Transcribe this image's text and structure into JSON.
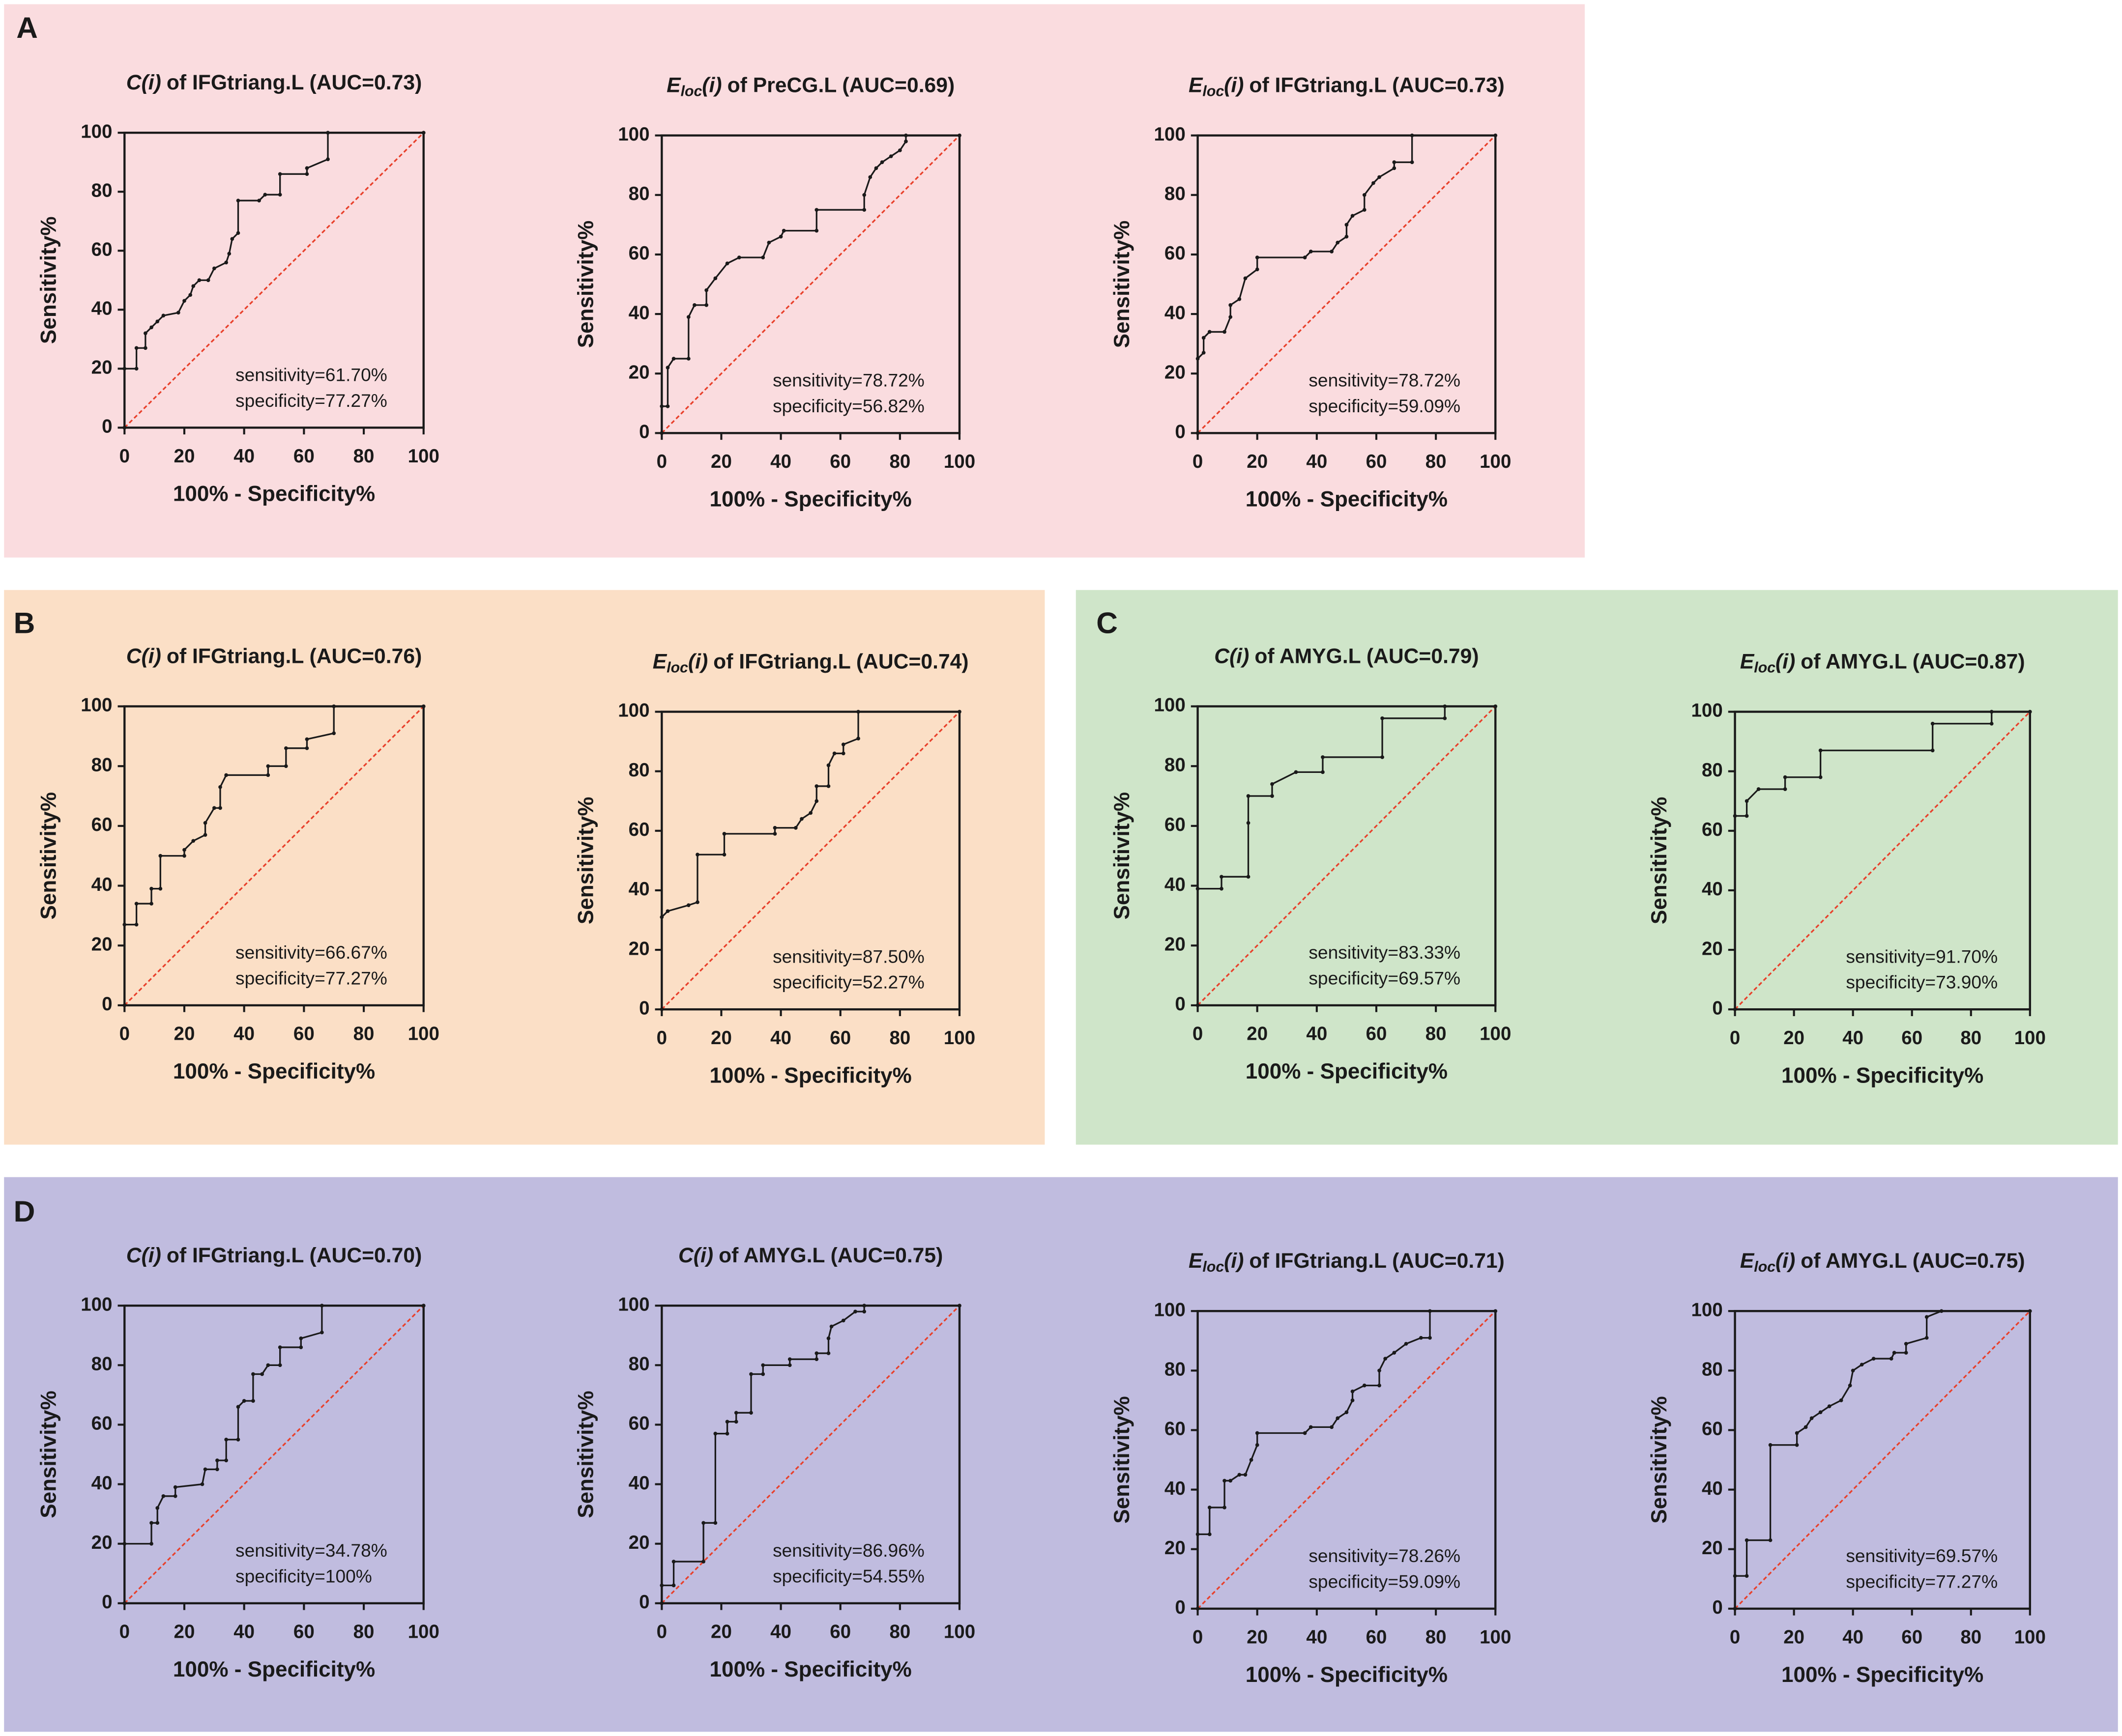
{
  "panels": [
    {
      "label": "A",
      "color": "#fadcdf"
    },
    {
      "label": "B",
      "color": "#fbdfc6"
    },
    {
      "label": "C",
      "color": "#cfe5c9"
    },
    {
      "label": "D",
      "color": "#c0bcdf"
    }
  ],
  "chart_data": [
    {
      "type": "line",
      "title": {
        "main": "C",
        "arg": "(i)",
        "rest": "of IFGtriang.L (AUC=0.73)"
      },
      "x": [
        0,
        0,
        4,
        4,
        7,
        7,
        9,
        11,
        13,
        18,
        20,
        22,
        23,
        25,
        28,
        30,
        34,
        35,
        36,
        38,
        38,
        45,
        47,
        52,
        52,
        61,
        61,
        68,
        68,
        100
      ],
      "values": [
        0,
        20,
        20,
        27,
        27,
        32,
        34,
        36,
        38,
        39,
        43,
        45,
        48,
        50,
        50,
        54,
        56,
        59,
        64,
        66,
        77,
        77,
        79,
        79,
        86,
        86,
        88,
        91,
        100,
        100
      ],
      "color": "#1a1a1a",
      "reference_color": "#e8412c",
      "xlim": [
        0,
        100
      ],
      "ylim": [
        0,
        100
      ],
      "xticks": [
        0,
        20,
        40,
        60,
        80,
        100
      ],
      "yticks": [
        0,
        20,
        40,
        60,
        80,
        100
      ],
      "x_label": "100% - Specificity%",
      "y_label": "Sensitivity%",
      "annotations": [
        "sensitivity=61.70%",
        "specificity=77.27%"
      ]
    },
    {
      "type": "line",
      "title": {
        "main": "E",
        "sub": "loc",
        "arg": "(i)",
        "rest": "of PreCG.L (AUC=0.69)"
      },
      "x": [
        0,
        0,
        2,
        2,
        4,
        9,
        9,
        11,
        15,
        15,
        18,
        22,
        26,
        34,
        36,
        40,
        41,
        52,
        52,
        68,
        68,
        70,
        72,
        74,
        77,
        80,
        82,
        82,
        100
      ],
      "values": [
        0,
        9,
        9,
        22,
        25,
        25,
        39,
        43,
        43,
        48,
        52,
        57,
        59,
        59,
        64,
        66,
        68,
        68,
        75,
        75,
        80,
        86,
        89,
        91,
        93,
        95,
        98,
        100,
        100
      ],
      "color": "#1a1a1a",
      "reference_color": "#e8412c",
      "xlim": [
        0,
        100
      ],
      "ylim": [
        0,
        100
      ],
      "xticks": [
        0,
        20,
        40,
        60,
        80,
        100
      ],
      "yticks": [
        0,
        20,
        40,
        60,
        80,
        100
      ],
      "x_label": "100% - Specificity%",
      "y_label": "Sensitivity%",
      "annotations": [
        "sensitivity=78.72%",
        "specificity=56.82%"
      ]
    },
    {
      "type": "line",
      "title": {
        "main": "E",
        "sub": "loc",
        "arg": "(i)",
        "rest": "of IFGtriang.L (AUC=0.73)"
      },
      "x": [
        0,
        0,
        2,
        2,
        4,
        9,
        11,
        11,
        14,
        16,
        20,
        20,
        36,
        38,
        45,
        47,
        50,
        50,
        52,
        56,
        56,
        59,
        61,
        66,
        66,
        72,
        72,
        100
      ],
      "values": [
        0,
        25,
        27,
        32,
        34,
        34,
        39,
        43,
        45,
        52,
        55,
        59,
        59,
        61,
        61,
        64,
        66,
        70,
        73,
        75,
        80,
        84,
        86,
        89,
        91,
        91,
        100,
        100
      ],
      "color": "#1a1a1a",
      "reference_color": "#e8412c",
      "xlim": [
        0,
        100
      ],
      "ylim": [
        0,
        100
      ],
      "xticks": [
        0,
        20,
        40,
        60,
        80,
        100
      ],
      "yticks": [
        0,
        20,
        40,
        60,
        80,
        100
      ],
      "x_label": "100% - Specificity%",
      "y_label": "Sensitivity%",
      "annotations": [
        "sensitivity=78.72%",
        "specificity=59.09%"
      ]
    },
    {
      "type": "line",
      "title": {
        "main": "C",
        "arg": "(i)",
        "rest": "of IFGtriang.L (AUC=0.76)"
      },
      "x": [
        0,
        0,
        4,
        4,
        9,
        9,
        12,
        12,
        20,
        20,
        23,
        27,
        27,
        30,
        32,
        32,
        34,
        48,
        48,
        54,
        54,
        61,
        61,
        70,
        70,
        100
      ],
      "values": [
        0,
        27,
        27,
        34,
        34,
        39,
        39,
        50,
        50,
        52,
        55,
        57,
        61,
        66,
        66,
        73,
        77,
        77,
        80,
        80,
        86,
        86,
        89,
        91,
        100,
        100
      ],
      "color": "#1a1a1a",
      "reference_color": "#e8412c",
      "xlim": [
        0,
        100
      ],
      "ylim": [
        0,
        100
      ],
      "xticks": [
        0,
        20,
        40,
        60,
        80,
        100
      ],
      "yticks": [
        0,
        20,
        40,
        60,
        80,
        100
      ],
      "x_label": "100% - Specificity%",
      "y_label": "Sensitivity%",
      "annotations": [
        "sensitivity=66.67%",
        "specificity=77.27%"
      ]
    },
    {
      "type": "line",
      "title": {
        "main": "E",
        "sub": "loc",
        "arg": "(i)",
        "rest": "of IFGtriang.L (AUC=0.74)"
      },
      "x": [
        0,
        0,
        2,
        9,
        12,
        12,
        21,
        21,
        38,
        38,
        45,
        47,
        50,
        52,
        52,
        56,
        56,
        58,
        61,
        61,
        66,
        66,
        100
      ],
      "values": [
        0,
        31,
        33,
        35,
        36,
        52,
        52,
        59,
        59,
        61,
        61,
        64,
        66,
        70,
        75,
        75,
        82,
        86,
        86,
        89,
        91,
        100,
        100
      ],
      "color": "#1a1a1a",
      "reference_color": "#e8412c",
      "xlim": [
        0,
        100
      ],
      "ylim": [
        0,
        100
      ],
      "xticks": [
        0,
        20,
        40,
        60,
        80,
        100
      ],
      "yticks": [
        0,
        20,
        40,
        60,
        80,
        100
      ],
      "x_label": "100% - Specificity%",
      "y_label": "Sensitivity%",
      "annotations": [
        "sensitivity=87.50%",
        "specificity=52.27%"
      ]
    },
    {
      "type": "line",
      "title": {
        "main": "C",
        "arg": "(i)",
        "rest": "of AMYG.L (AUC=0.79)"
      },
      "x": [
        0,
        0,
        8,
        8,
        17,
        17,
        17,
        25,
        25,
        33,
        42,
        42,
        62,
        62,
        83,
        83,
        100
      ],
      "values": [
        0,
        39,
        39,
        43,
        43,
        61,
        70,
        70,
        74,
        78,
        78,
        83,
        83,
        96,
        96,
        100,
        100
      ],
      "color": "#1a1a1a",
      "reference_color": "#e8412c",
      "xlim": [
        0,
        100
      ],
      "ylim": [
        0,
        100
      ],
      "xticks": [
        0,
        20,
        40,
        60,
        80,
        100
      ],
      "yticks": [
        0,
        20,
        40,
        60,
        80,
        100
      ],
      "x_label": "100% - Specificity%",
      "y_label": "Sensitivity%",
      "annotations": [
        "sensitivity=83.33%",
        "specificity=69.57%"
      ]
    },
    {
      "type": "line",
      "title": {
        "main": "E",
        "sub": "loc",
        "arg": "(i)",
        "rest": "of AMYG.L (AUC=0.87)"
      },
      "x": [
        0,
        0,
        4,
        4,
        8,
        17,
        17,
        29,
        29,
        67,
        67,
        87,
        87,
        100
      ],
      "values": [
        0,
        65,
        65,
        70,
        74,
        74,
        78,
        78,
        87,
        87,
        96,
        96,
        100,
        100
      ],
      "color": "#1a1a1a",
      "reference_color": "#e8412c",
      "xlim": [
        0,
        100
      ],
      "ylim": [
        0,
        100
      ],
      "xticks": [
        0,
        20,
        40,
        60,
        80,
        100
      ],
      "yticks": [
        0,
        20,
        40,
        60,
        80,
        100
      ],
      "x_label": "100% - Specificity%",
      "y_label": "Sensitivity%",
      "annotations": [
        "sensitivity=91.70%",
        "specificity=73.90%"
      ]
    },
    {
      "type": "line",
      "title": {
        "main": "C",
        "arg": "(i)",
        "rest": "of IFGtriang.L (AUC=0.70)"
      },
      "x": [
        0,
        0,
        9,
        9,
        11,
        11,
        13,
        17,
        17,
        26,
        27,
        31,
        31,
        34,
        34,
        38,
        38,
        40,
        43,
        43,
        46,
        48,
        52,
        52,
        59,
        59,
        66,
        66,
        100
      ],
      "values": [
        0,
        20,
        20,
        27,
        27,
        32,
        36,
        36,
        39,
        40,
        45,
        45,
        48,
        48,
        55,
        55,
        66,
        68,
        68,
        77,
        77,
        80,
        80,
        86,
        86,
        89,
        91,
        100,
        100
      ],
      "color": "#1a1a1a",
      "reference_color": "#e8412c",
      "xlim": [
        0,
        100
      ],
      "ylim": [
        0,
        100
      ],
      "xticks": [
        0,
        20,
        40,
        60,
        80,
        100
      ],
      "yticks": [
        0,
        20,
        40,
        60,
        80,
        100
      ],
      "x_label": "100% - Specificity%",
      "y_label": "Sensitivity%",
      "annotations": [
        "sensitivity=34.78%",
        "specificity=100%"
      ]
    },
    {
      "type": "line",
      "title": {
        "main": "C",
        "arg": "(i)",
        "rest": "of AMYG.L (AUC=0.75)"
      },
      "x": [
        0,
        0,
        4,
        4,
        14,
        14,
        18,
        18,
        22,
        22,
        25,
        25,
        30,
        30,
        34,
        34,
        43,
        43,
        52,
        52,
        56,
        56,
        57,
        61,
        65,
        68,
        68,
        100
      ],
      "values": [
        0,
        6,
        6,
        14,
        14,
        27,
        27,
        57,
        57,
        61,
        61,
        64,
        64,
        77,
        77,
        80,
        80,
        82,
        82,
        84,
        84,
        89,
        93,
        95,
        98,
        98,
        100,
        100
      ],
      "color": "#1a1a1a",
      "reference_color": "#e8412c",
      "xlim": [
        0,
        100
      ],
      "ylim": [
        0,
        100
      ],
      "xticks": [
        0,
        20,
        40,
        60,
        80,
        100
      ],
      "yticks": [
        0,
        20,
        40,
        60,
        80,
        100
      ],
      "x_label": "100% - Specificity%",
      "y_label": "Sensitivity%",
      "annotations": [
        "sensitivity=86.96%",
        "specificity=54.55%"
      ]
    },
    {
      "type": "line",
      "title": {
        "main": "E",
        "sub": "loc",
        "arg": "(i)",
        "rest": "of IFGtriang.L (AUC=0.71)"
      },
      "x": [
        0,
        0,
        4,
        4,
        9,
        9,
        11,
        14,
        16,
        18,
        20,
        20,
        36,
        38,
        45,
        47,
        50,
        52,
        52,
        56,
        61,
        61,
        63,
        66,
        70,
        75,
        78,
        78,
        100
      ],
      "values": [
        0,
        25,
        25,
        34,
        34,
        43,
        43,
        45,
        45,
        50,
        55,
        59,
        59,
        61,
        61,
        64,
        66,
        70,
        73,
        75,
        75,
        80,
        84,
        86,
        89,
        91,
        91,
        100,
        100
      ],
      "color": "#1a1a1a",
      "reference_color": "#e8412c",
      "xlim": [
        0,
        100
      ],
      "ylim": [
        0,
        100
      ],
      "xticks": [
        0,
        20,
        40,
        60,
        80,
        100
      ],
      "yticks": [
        0,
        20,
        40,
        60,
        80,
        100
      ],
      "x_label": "100% - Specificity%",
      "y_label": "Sensitivity%",
      "annotations": [
        "sensitivity=78.26%",
        "specificity=59.09%"
      ]
    },
    {
      "type": "line",
      "title": {
        "main": "E",
        "sub": "loc",
        "arg": "(i)",
        "rest": "of AMYG.L (AUC=0.75)"
      },
      "x": [
        0,
        0,
        4,
        4,
        12,
        12,
        21,
        21,
        24,
        26,
        29,
        32,
        36,
        39,
        40,
        43,
        47,
        53,
        54,
        58,
        58,
        65,
        65,
        70,
        100
      ],
      "values": [
        0,
        11,
        11,
        23,
        23,
        55,
        55,
        59,
        61,
        64,
        66,
        68,
        70,
        75,
        80,
        82,
        84,
        84,
        86,
        86,
        89,
        91,
        98,
        100,
        100
      ],
      "color": "#1a1a1a",
      "reference_color": "#e8412c",
      "xlim": [
        0,
        100
      ],
      "ylim": [
        0,
        100
      ],
      "xticks": [
        0,
        20,
        40,
        60,
        80,
        100
      ],
      "yticks": [
        0,
        20,
        40,
        60,
        80,
        100
      ],
      "x_label": "100% - Specificity%",
      "y_label": "Sensitivity%",
      "annotations": [
        "sensitivity=69.57%",
        "specificity=77.27%"
      ]
    }
  ]
}
